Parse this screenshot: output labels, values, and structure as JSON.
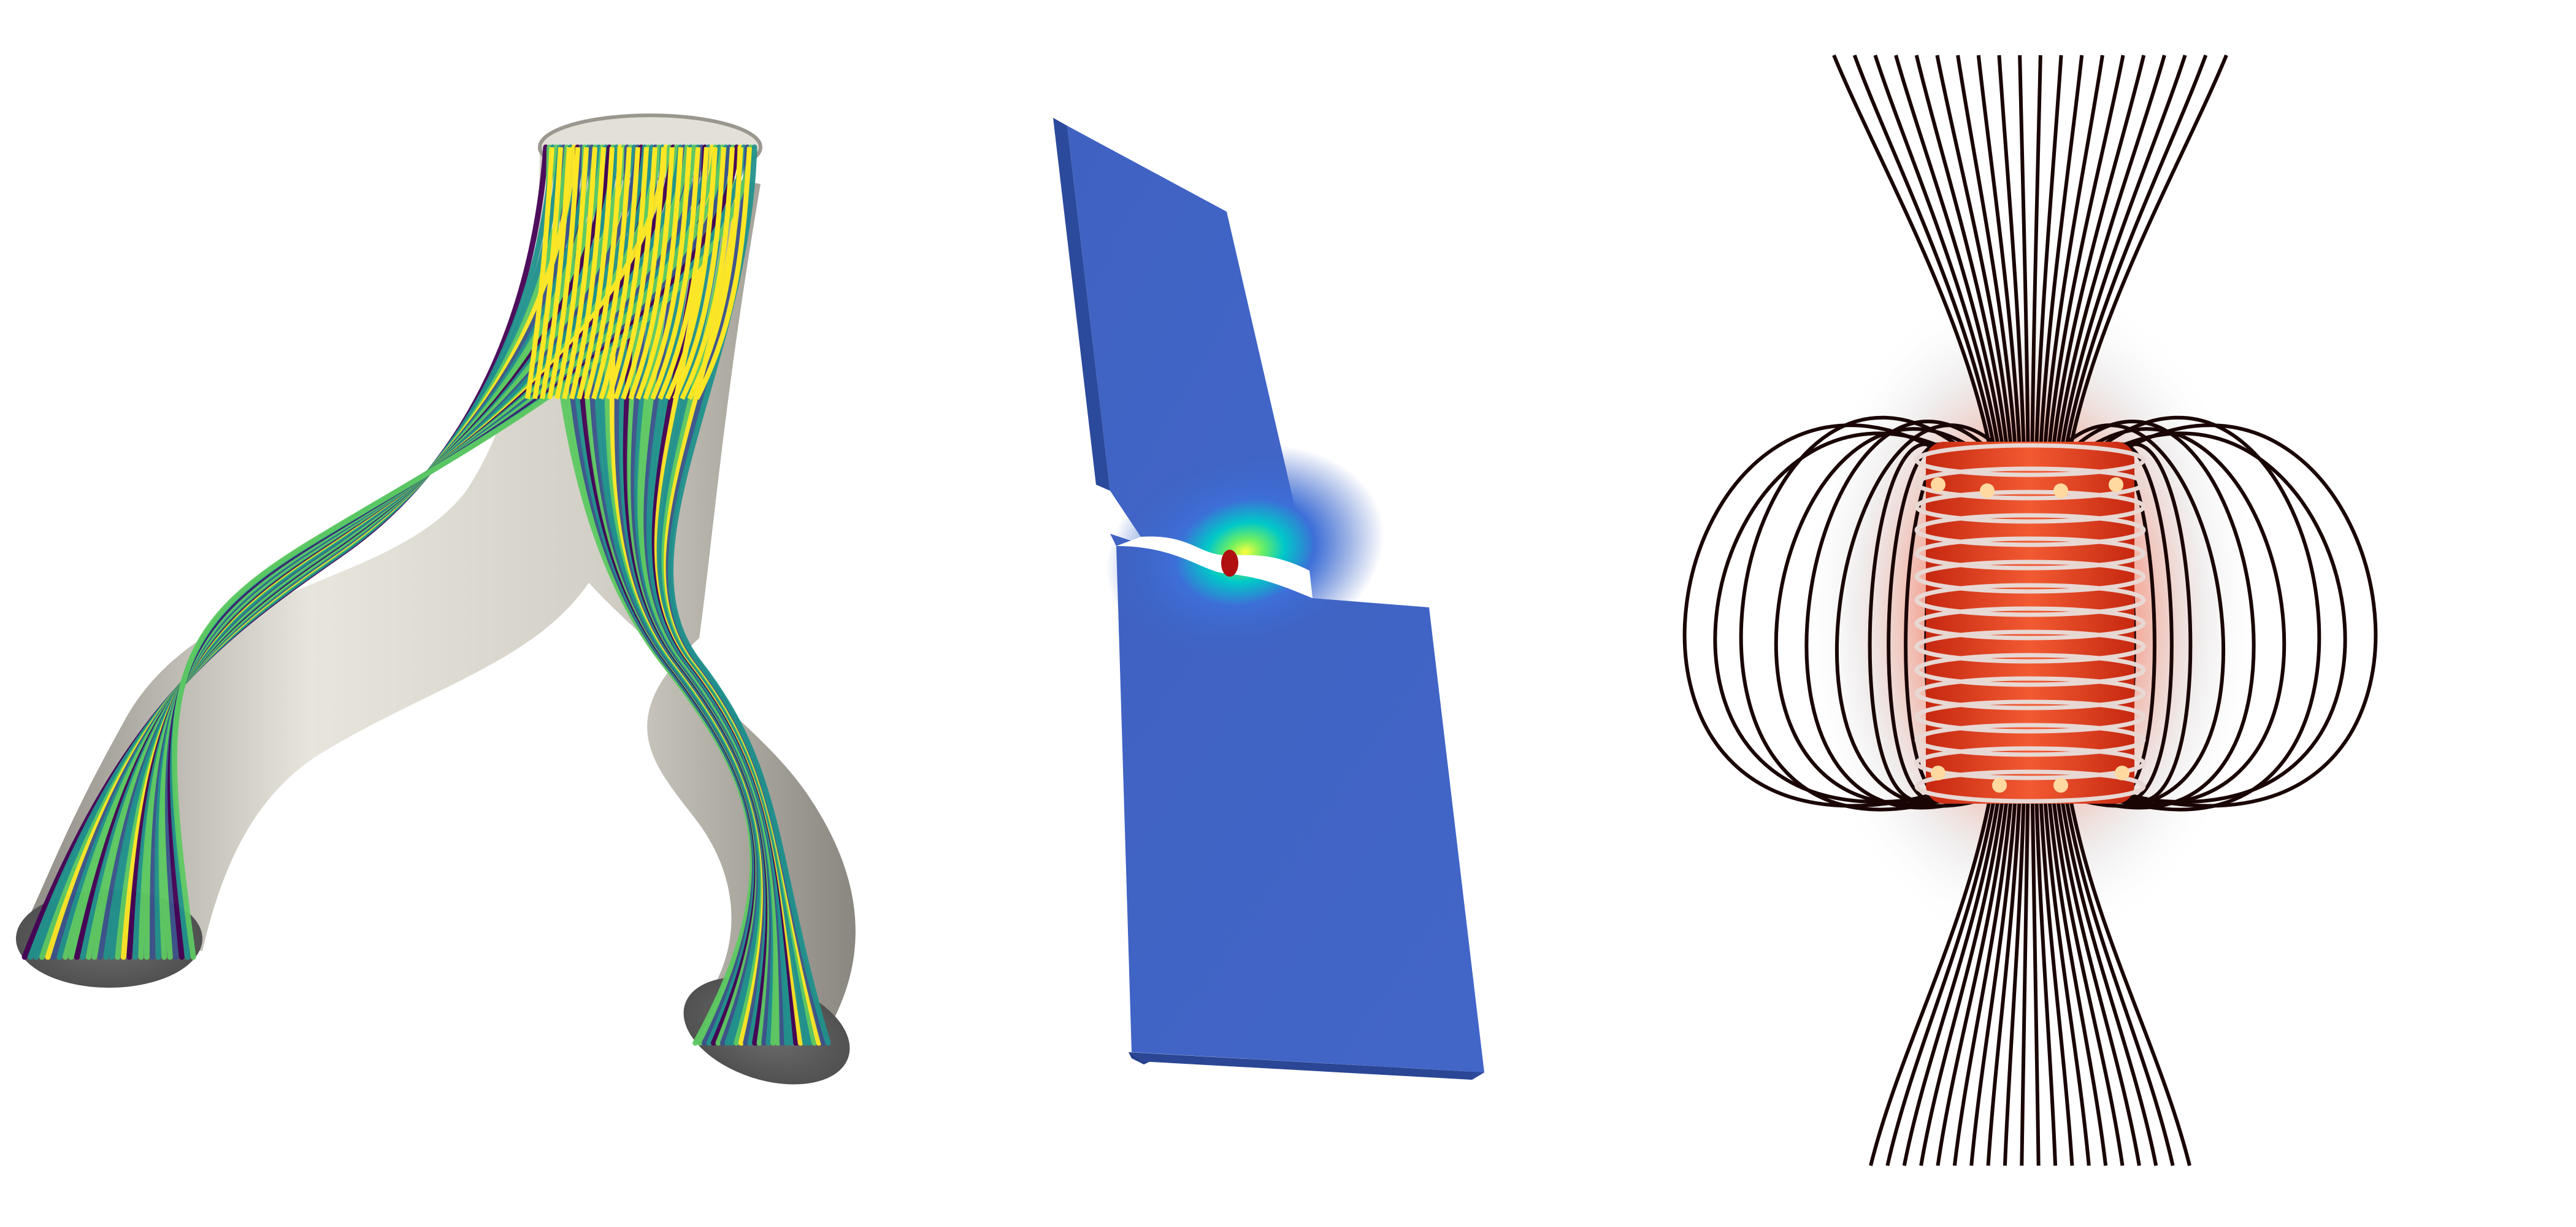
{
  "scene": {
    "background": "#ffffff",
    "panels": [
      {
        "name": "bifurcating-pipe-streamlines",
        "colormap": [
          "#440154",
          "#3b528b",
          "#21918c",
          "#5ec962",
          "#fde725"
        ],
        "pipe_color": "#d9d6ce"
      },
      {
        "name": "notched-plate-stress",
        "colormap": [
          "#4b0f0f",
          "#3b4cc0",
          "#00ced1",
          "#7cfc00",
          "#ffff00"
        ],
        "plate_color": "#3e63c4"
      },
      {
        "name": "solenoid-magnetic-field",
        "coil_color": "#e53a1e",
        "glow_color": "#ff2a00",
        "field_line_color": "#1a0505"
      }
    ]
  }
}
